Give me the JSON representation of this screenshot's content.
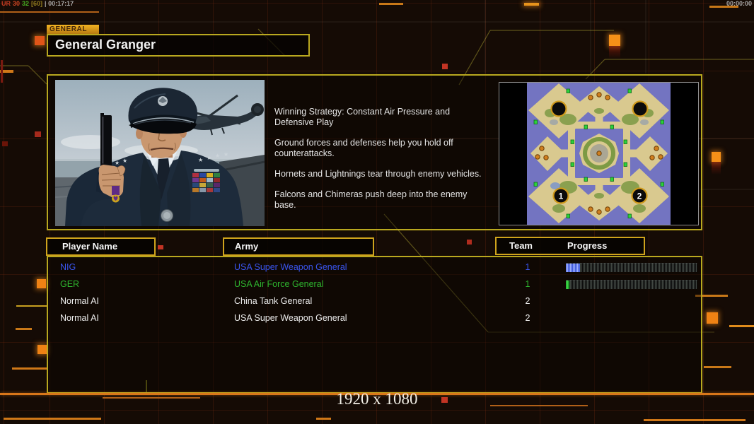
{
  "hud": {
    "debug_tokens": [
      {
        "text": "UR",
        "color": "#c23b22"
      },
      {
        "text": "30",
        "color": "#cc4422"
      },
      {
        "text": "32",
        "color": "#44aa22"
      },
      {
        "text": "[60]",
        "color": "#8f7a1e"
      },
      {
        "text": "| 00:17:17",
        "color": "#a8a8a8"
      }
    ],
    "session_timer": "00:00:00"
  },
  "general": {
    "tab_label": "GENERAL",
    "name": "General Granger"
  },
  "strategy": {
    "paragraphs": [
      "Winning Strategy: Constant Air Pressure and\nDefensive Play",
      "Ground forces and defenses help you hold off\ncounterattacks.",
      "Hornets and Lightnings tear through enemy vehicles.",
      "Falcons and Chimeras push deep into the enemy base."
    ]
  },
  "minimap": {
    "start_labels": [
      "1",
      "2"
    ]
  },
  "table": {
    "headers": {
      "player_name": "Player Name",
      "army": "Army",
      "team": "Team",
      "progress": "Progress"
    },
    "rows": [
      {
        "name": "NIG",
        "army": "USA Super Weapon General",
        "team": "1",
        "color": "#3a55ee",
        "has_bar": true,
        "progress_pct": 10.5,
        "bar_colors": [
          "#9fb0ff",
          "#3a55d8"
        ]
      },
      {
        "name": "GER",
        "army": "USA Air Force General",
        "team": "1",
        "color": "#2eb42e",
        "has_bar": true,
        "progress_pct": 2.5,
        "bar_colors": [
          "#40e04a",
          "#1a8c24"
        ]
      },
      {
        "name": "Normal AI",
        "army": "China Tank General",
        "team": "2",
        "color": "#ececec",
        "has_bar": false,
        "progress_pct": 0,
        "bar_colors": [
          "#888",
          "#444"
        ]
      },
      {
        "name": "Normal AI",
        "army": "USA Super Weapon General",
        "team": "2",
        "color": "#ececec",
        "has_bar": false,
        "progress_pct": 0,
        "bar_colors": [
          "#888",
          "#444"
        ]
      }
    ]
  },
  "footer": {
    "resolution": "1920 x 1080"
  },
  "colors": {
    "box_border": "#b9a81f",
    "header_border": "#cfa31c",
    "accent_orange": "#d9771a"
  }
}
